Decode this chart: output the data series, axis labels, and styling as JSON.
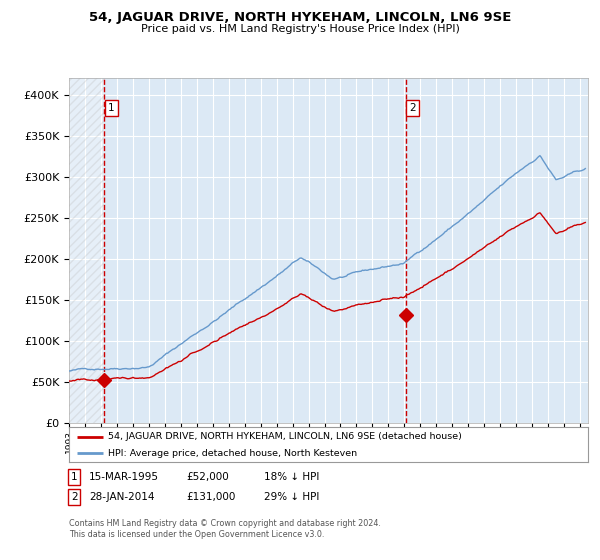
{
  "title": "54, JAGUAR DRIVE, NORTH HYKEHAM, LINCOLN, LN6 9SE",
  "subtitle": "Price paid vs. HM Land Registry's House Price Index (HPI)",
  "legend_line1": "54, JAGUAR DRIVE, NORTH HYKEHAM, LINCOLN, LN6 9SE (detached house)",
  "legend_line2": "HPI: Average price, detached house, North Kesteven",
  "sale1_date_num": 1995.21,
  "sale1_price": 52000,
  "sale2_date_num": 2014.08,
  "sale2_price": 131000,
  "footer": "Contains HM Land Registry data © Crown copyright and database right 2024.\nThis data is licensed under the Open Government Licence v3.0.",
  "bg_color": "#dce9f5",
  "grid_color": "#ffffff",
  "red_line_color": "#cc0000",
  "blue_line_color": "#6699cc",
  "ylim": [
    0,
    420000
  ],
  "xlim_start": 1993.0,
  "xlim_end": 2025.5
}
